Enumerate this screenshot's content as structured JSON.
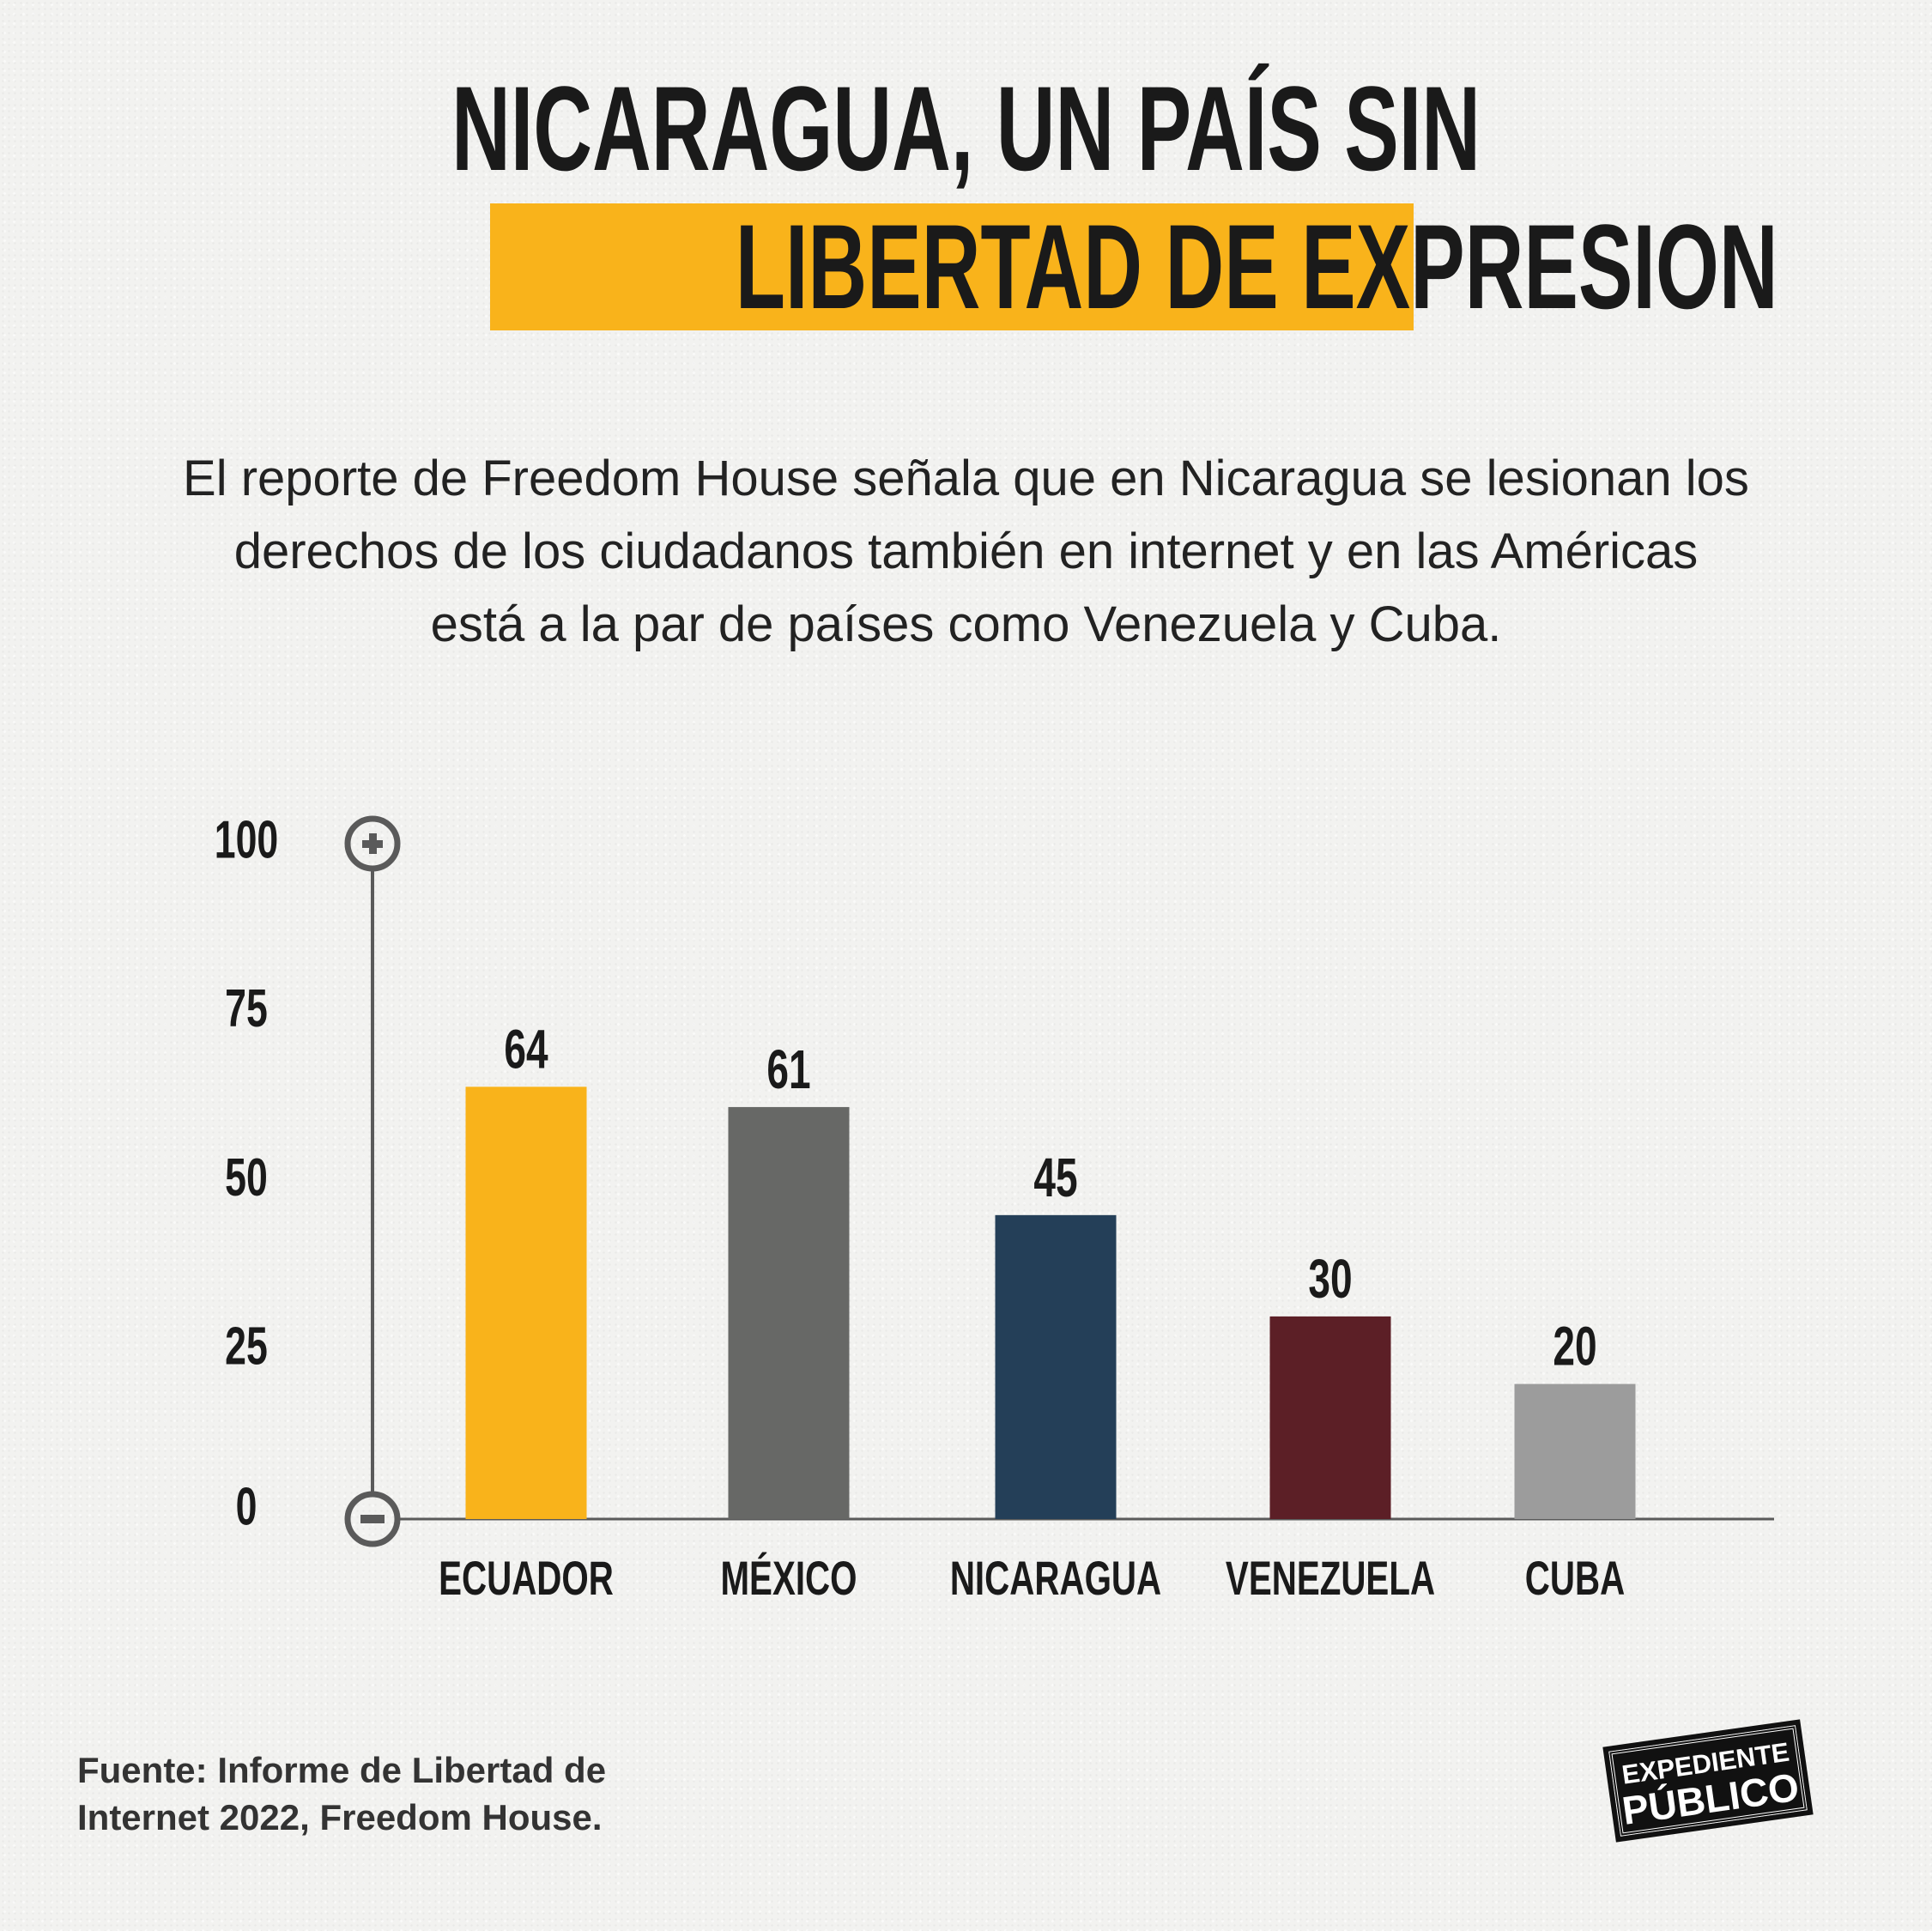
{
  "header": {
    "title_line1": "NICARAGUA, UN PAÍS SIN",
    "title_line2": "LIBERTAD DE EXPRESION",
    "subtitle": [
      "El reporte de Freedom House señala que en Nicaragua se lesionan los",
      "derechos de los ciudadanos también en internet y en las Américas",
      "está a la par de países como Venezuela y Cuba."
    ]
  },
  "chart_data": {
    "type": "bar",
    "categories": [
      "ECUADOR",
      "MÉXICO",
      "NICARAGUA",
      "VENEZUELA",
      "CUBA"
    ],
    "values": [
      64,
      61,
      45,
      30,
      20
    ],
    "colors": [
      "#F9B31B",
      "#676866",
      "#243F58",
      "#5C1F26",
      "#9C9C9C"
    ],
    "yticks": [
      "0",
      "25",
      "50",
      "75",
      "100"
    ],
    "ylim": [
      0,
      100
    ],
    "axis_icons": [
      "plus-icon",
      "minus-icon"
    ],
    "title": "",
    "xlabel": "",
    "ylabel": ""
  },
  "footer": {
    "source": [
      "Fuente:  Informe de Libertad de",
      "Internet 2022, Freedom House."
    ],
    "logo": [
      "EXPEDIENTE",
      "PÚBLICO"
    ]
  }
}
